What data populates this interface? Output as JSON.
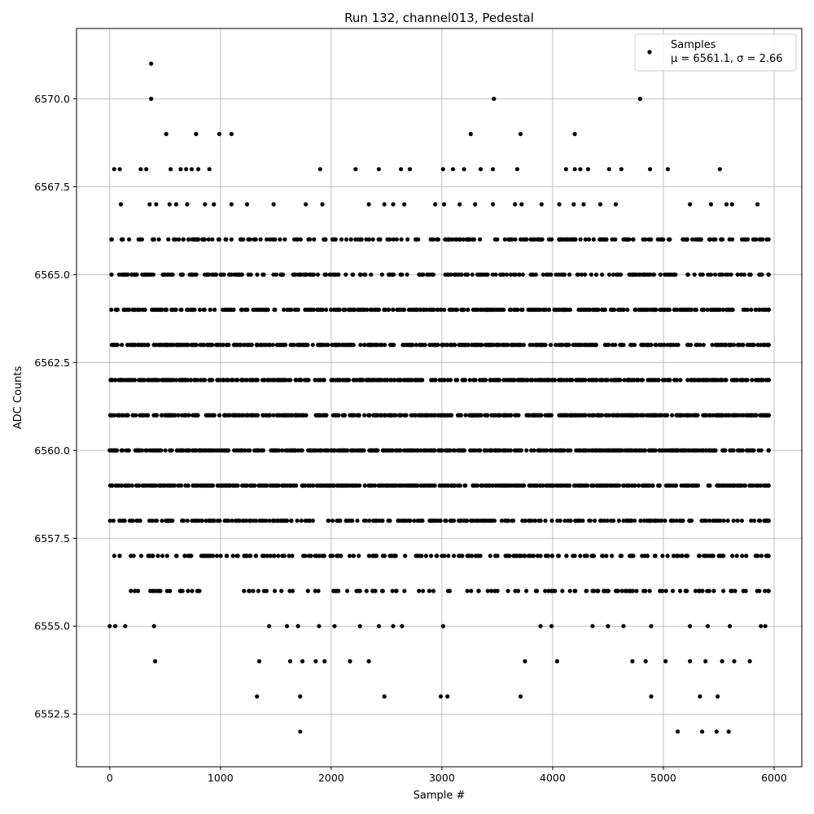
{
  "chart_data": {
    "type": "scatter",
    "title": "Run 132, channel013, Pedestal",
    "xlabel": "Sample #",
    "ylabel": "ADC Counts",
    "xlim": [
      -300,
      6250
    ],
    "ylim": [
      6551.0,
      6572.0
    ],
    "x_ticks": [
      0,
      1000,
      2000,
      3000,
      4000,
      5000,
      6000
    ],
    "y_ticks": [
      6552.5,
      6555.0,
      6557.5,
      6560.0,
      6562.5,
      6565.0,
      6567.5,
      6570.0
    ],
    "x_tick_labels": [
      "0",
      "1000",
      "2000",
      "3000",
      "4000",
      "5000",
      "6000"
    ],
    "y_tick_labels": [
      "6552.5",
      "6555.0",
      "6557.5",
      "6560.0",
      "6562.5",
      "6565.0",
      "6567.5",
      "6570.0"
    ],
    "grid": true,
    "marker_color": "#000000",
    "legend": {
      "position": "upper-right",
      "entries": [
        {
          "label": "Samples",
          "stats": "μ = 6561.1, σ = 2.66"
        }
      ]
    },
    "sample_count": 6000,
    "series": [
      {
        "name": "Samples",
        "points": [
          [
            374,
            6571
          ],
          [
            374,
            6570
          ],
          [
            3470,
            6570
          ],
          [
            4790,
            6570
          ],
          [
            510,
            6569
          ],
          [
            780,
            6569
          ],
          [
            990,
            6569
          ],
          [
            1100,
            6569
          ],
          [
            3260,
            6569
          ],
          [
            3710,
            6569
          ],
          [
            4200,
            6569
          ],
          [
            40,
            6568
          ],
          [
            90,
            6568
          ],
          [
            280,
            6568
          ],
          [
            330,
            6568
          ],
          [
            550,
            6568
          ],
          [
            640,
            6568
          ],
          [
            690,
            6568
          ],
          [
            740,
            6568
          ],
          [
            800,
            6568
          ],
          [
            900,
            6568
          ],
          [
            1900,
            6568
          ],
          [
            2220,
            6568
          ],
          [
            2430,
            6568
          ],
          [
            2630,
            6568
          ],
          [
            2710,
            6568
          ],
          [
            3010,
            6568
          ],
          [
            3100,
            6568
          ],
          [
            3200,
            6568
          ],
          [
            3350,
            6568
          ],
          [
            3460,
            6568
          ],
          [
            3680,
            6568
          ],
          [
            4120,
            6568
          ],
          [
            4200,
            6568
          ],
          [
            4250,
            6568
          ],
          [
            4320,
            6568
          ],
          [
            4510,
            6568
          ],
          [
            4620,
            6568
          ],
          [
            4880,
            6568
          ],
          [
            5040,
            6568
          ],
          [
            5510,
            6568
          ],
          [
            100,
            6567
          ],
          [
            360,
            6567
          ],
          [
            420,
            6567
          ],
          [
            540,
            6567
          ],
          [
            600,
            6567
          ],
          [
            700,
            6567
          ],
          [
            860,
            6567
          ],
          [
            940,
            6567
          ],
          [
            1100,
            6567
          ],
          [
            1240,
            6567
          ],
          [
            1480,
            6567
          ],
          [
            1770,
            6567
          ],
          [
            1920,
            6567
          ],
          [
            2340,
            6567
          ],
          [
            2480,
            6567
          ],
          [
            2560,
            6567
          ],
          [
            2660,
            6567
          ],
          [
            2940,
            6567
          ],
          [
            3020,
            6567
          ],
          [
            3160,
            6567
          ],
          [
            3300,
            6567
          ],
          [
            3460,
            6567
          ],
          [
            3660,
            6567
          ],
          [
            3720,
            6567
          ],
          [
            3900,
            6567
          ],
          [
            4060,
            6567
          ],
          [
            4190,
            6567
          ],
          [
            4280,
            6567
          ],
          [
            4430,
            6567
          ],
          [
            4570,
            6567
          ],
          [
            5240,
            6567
          ],
          [
            5430,
            6567
          ],
          [
            5570,
            6567
          ],
          [
            5620,
            6567
          ],
          [
            5850,
            6567
          ],
          [
            1690,
            6566
          ],
          [
            5340,
            6566
          ],
          [
            5520,
            6566
          ],
          [
            5710,
            6566
          ],
          [
            5870,
            6566
          ],
          [
            5880,
            6565
          ],
          [
            1720,
            6552
          ],
          [
            5130,
            6552
          ],
          [
            5350,
            6552
          ],
          [
            5480,
            6552
          ],
          [
            5590,
            6552
          ],
          [
            1330,
            6553
          ],
          [
            1720,
            6553
          ],
          [
            2480,
            6553
          ],
          [
            2990,
            6553
          ],
          [
            3050,
            6553
          ],
          [
            3710,
            6553
          ],
          [
            4890,
            6553
          ],
          [
            5330,
            6553
          ],
          [
            5490,
            6553
          ],
          [
            410,
            6554
          ],
          [
            1350,
            6554
          ],
          [
            1630,
            6554
          ],
          [
            1740,
            6554
          ],
          [
            1860,
            6554
          ],
          [
            1940,
            6554
          ],
          [
            2170,
            6554
          ],
          [
            2340,
            6554
          ],
          [
            3750,
            6554
          ],
          [
            4040,
            6554
          ],
          [
            4720,
            6554
          ],
          [
            4840,
            6554
          ],
          [
            5020,
            6554
          ],
          [
            5240,
            6554
          ],
          [
            5380,
            6554
          ],
          [
            5530,
            6554
          ],
          [
            5640,
            6554
          ],
          [
            5780,
            6554
          ],
          [
            0,
            6555
          ],
          [
            50,
            6555
          ],
          [
            140,
            6555
          ],
          [
            400,
            6555
          ],
          [
            1440,
            6555
          ],
          [
            1600,
            6555
          ],
          [
            1700,
            6555
          ],
          [
            1890,
            6555
          ],
          [
            2030,
            6555
          ],
          [
            2260,
            6555
          ],
          [
            2430,
            6555
          ],
          [
            2560,
            6555
          ],
          [
            2640,
            6555
          ],
          [
            3010,
            6555
          ],
          [
            3890,
            6555
          ],
          [
            3990,
            6555
          ],
          [
            4360,
            6555
          ],
          [
            4500,
            6555
          ],
          [
            4640,
            6555
          ],
          [
            4890,
            6555
          ],
          [
            5240,
            6555
          ],
          [
            5400,
            6555
          ],
          [
            5600,
            6555
          ],
          [
            5880,
            6555
          ],
          [
            5920,
            6555
          ]
        ],
        "dense_levels": [
          {
            "y": 6558,
            "count": 300
          },
          {
            "y": 6559,
            "count": 480
          },
          {
            "y": 6560,
            "count": 520
          },
          {
            "y": 6561,
            "count": 520
          },
          {
            "y": 6562,
            "count": 520
          },
          {
            "y": 6563,
            "count": 480
          },
          {
            "y": 6564,
            "count": 400
          },
          {
            "y": 6565,
            "count": 260
          },
          {
            "y": 6566,
            "count": 220
          },
          {
            "y": 6557,
            "count": 220
          },
          {
            "y": 6556,
            "count": 140
          }
        ]
      }
    ]
  }
}
